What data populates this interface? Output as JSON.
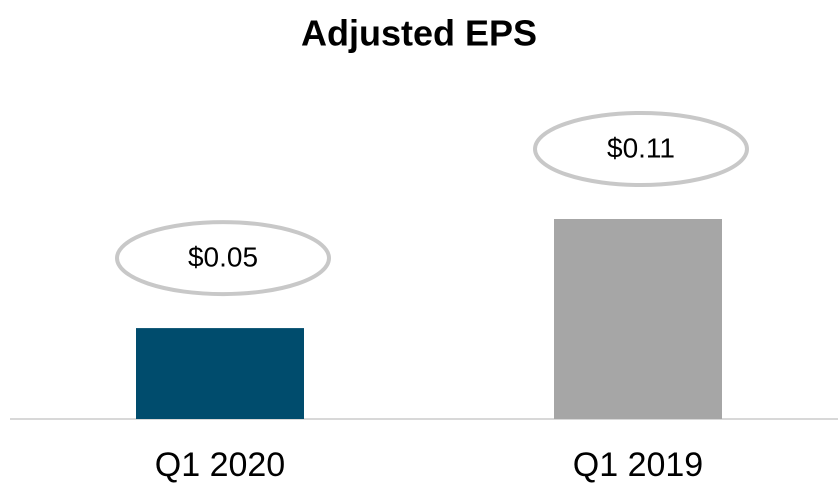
{
  "chart_data": {
    "type": "bar",
    "title": "Adjusted EPS",
    "categories": [
      "Q1 2020",
      "Q1 2019"
    ],
    "values": [
      0.05,
      0.11
    ],
    "value_labels": [
      "$0.05",
      "$0.11"
    ],
    "colors": [
      "#004c6d",
      "#a6a6a6"
    ]
  }
}
